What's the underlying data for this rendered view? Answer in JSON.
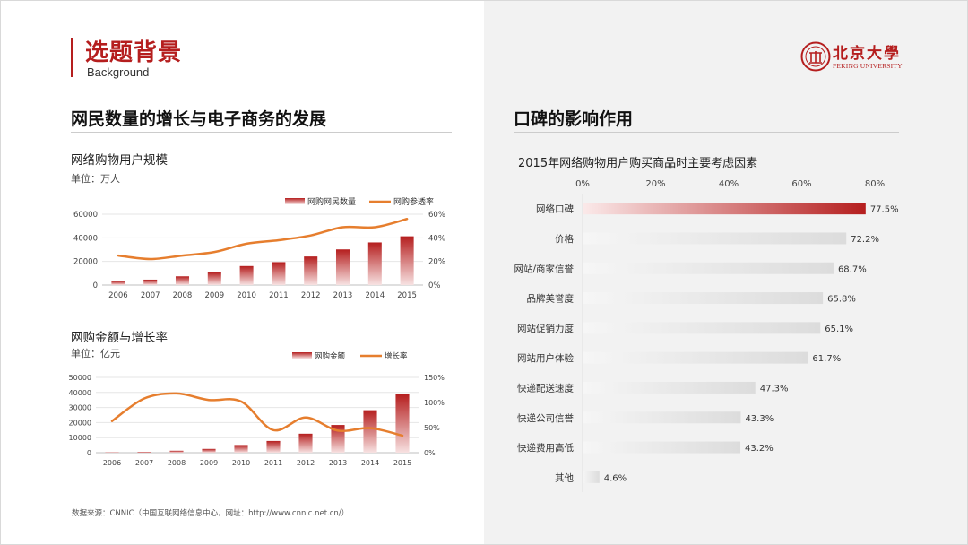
{
  "header": {
    "title": "选题背景",
    "subtitle": "Background",
    "logo_cn": "北京大學",
    "logo_en": "PEKING UNIVERSITY"
  },
  "left_section": {
    "title": "网民数量的增长与电子商务的发展",
    "source": "数据来源：CNNIC（中国互联网络信息中心，网址：http://www.cnnic.net.cn/）"
  },
  "right_section": {
    "title": "口碑的影响作用"
  },
  "colors": {
    "brand_red": "#b51e1e",
    "line_orange": "#e67e2e",
    "bar_gray": "#dcdcdc"
  },
  "chart_data": [
    {
      "type": "bar",
      "title": "网络购物用户规模",
      "unit_label": "单位：万人",
      "categories": [
        "2006",
        "2007",
        "2008",
        "2009",
        "2010",
        "2011",
        "2012",
        "2013",
        "2014",
        "2015"
      ],
      "series": [
        {
          "name": "网购网民数量",
          "kind": "bar",
          "axis": "left",
          "values": [
            3400,
            4600,
            7400,
            10800,
            16100,
            19400,
            24200,
            30200,
            36100,
            41300
          ]
        },
        {
          "name": "网购参透率",
          "kind": "line",
          "axis": "right",
          "values": [
            25,
            22,
            25,
            28,
            35,
            38,
            42,
            49,
            49,
            56
          ]
        }
      ],
      "ylim_left": [
        0,
        60000
      ],
      "yticks_left": [
        "0",
        "20000",
        "40000",
        "60000"
      ],
      "ylim_right": [
        0,
        60
      ],
      "yticks_right": [
        "0%",
        "20%",
        "40%",
        "60%"
      ]
    },
    {
      "type": "bar",
      "title": "网购金额与增长率",
      "unit_label": "单位：亿元",
      "categories": [
        "2006",
        "2007",
        "2008",
        "2009",
        "2010",
        "2011",
        "2012",
        "2013",
        "2014",
        "2015"
      ],
      "series": [
        {
          "name": "网购金额",
          "kind": "bar",
          "axis": "left",
          "values": [
            260,
            560,
            1300,
            2500,
            5100,
            7800,
            12600,
            18400,
            28200,
            38800
          ]
        },
        {
          "name": "增长率",
          "kind": "line",
          "axis": "right",
          "values": [
            63,
            108,
            118,
            105,
            102,
            45,
            70,
            44,
            49,
            34
          ]
        }
      ],
      "ylim_left": [
        0,
        50000
      ],
      "yticks_left": [
        "0",
        "10000",
        "20000",
        "30000",
        "40000",
        "50000"
      ],
      "ylim_right": [
        0,
        150
      ],
      "yticks_right": [
        "0%",
        "50%",
        "100%",
        "150%"
      ]
    },
    {
      "type": "bar",
      "orientation": "horizontal",
      "title": "2015年网络购物用户购买商品时主要考虑因素",
      "categories": [
        "网络口碑",
        "价格",
        "网站/商家信誉",
        "品牌美誉度",
        "网站促销力度",
        "网站用户体验",
        "快递配送速度",
        "快递公司信誉",
        "快递费用高低",
        "其他"
      ],
      "values": [
        77.5,
        72.2,
        68.7,
        65.8,
        65.1,
        61.7,
        47.3,
        43.3,
        43.2,
        4.6
      ],
      "value_labels": [
        "77.5%",
        "72.2%",
        "68.7%",
        "65.8%",
        "65.1%",
        "61.7%",
        "47.3%",
        "43.3%",
        "43.2%",
        "4.6%"
      ],
      "xlim": [
        0,
        80
      ],
      "xticks": [
        "0%",
        "20%",
        "40%",
        "60%",
        "80%"
      ]
    }
  ]
}
